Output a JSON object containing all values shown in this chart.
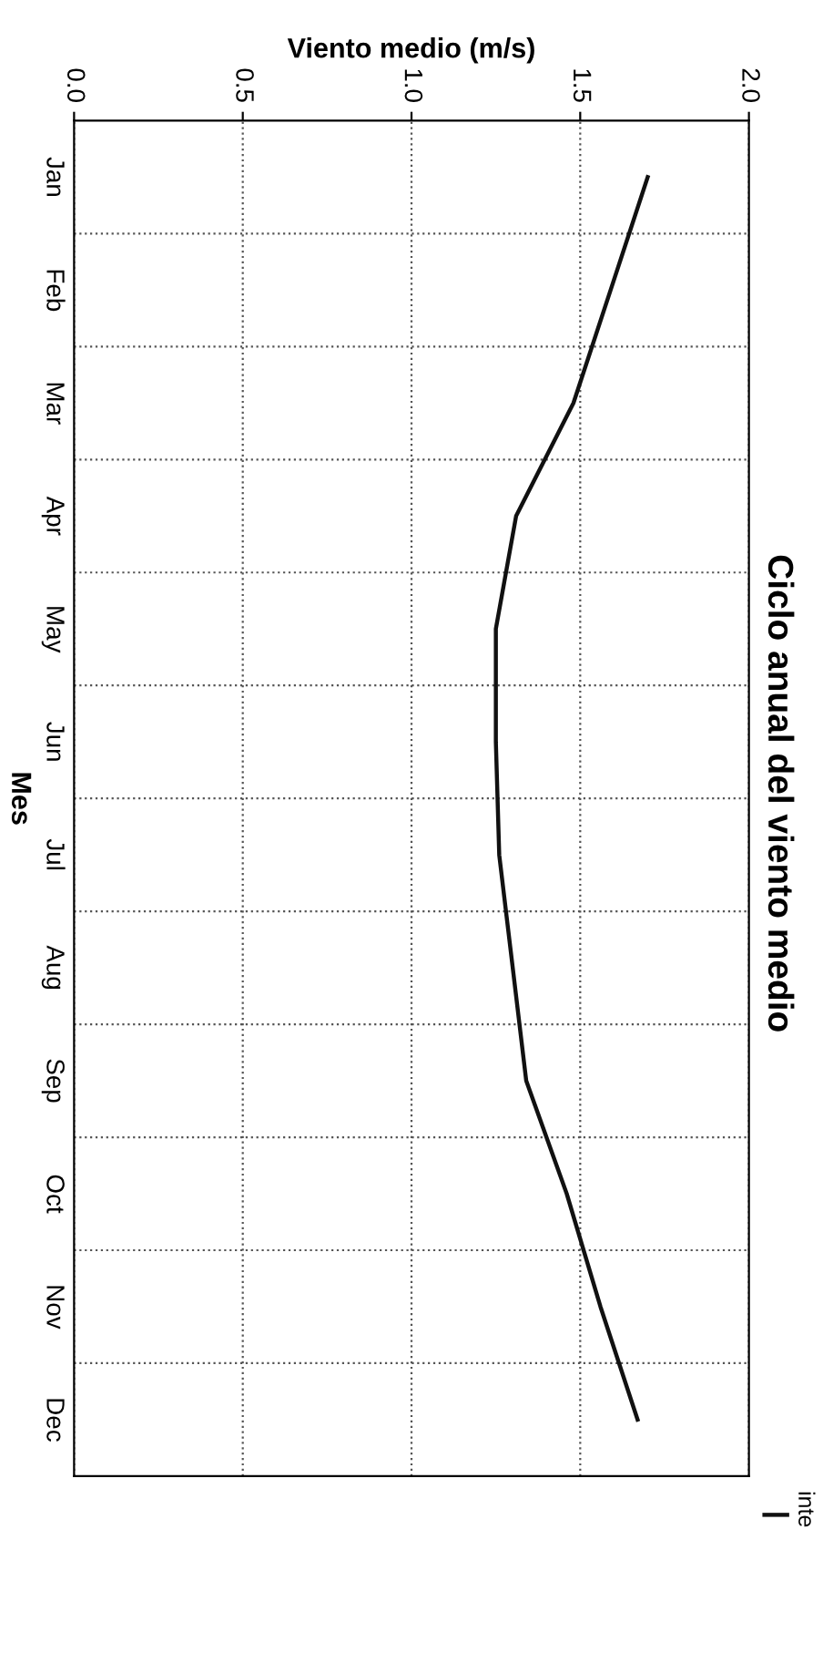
{
  "chart_data": {
    "type": "line",
    "orientation": "horizontal",
    "title": "Ciclo anual del viento medio",
    "xlabel": "Viento medio (m/s)",
    "ylabel": "Mes",
    "categories": [
      "Jan",
      "Feb",
      "Mar",
      "Apr",
      "May",
      "Jun",
      "Jul",
      "Aug",
      "Sep",
      "Oct",
      "Nov",
      "Dec"
    ],
    "series": [
      {
        "name": "inte",
        "color": "#111111",
        "values": [
          1.7,
          1.59,
          1.48,
          1.31,
          1.25,
          1.25,
          1.26,
          1.3,
          1.34,
          1.46,
          1.56,
          1.67
        ]
      }
    ],
    "xlim": [
      0,
      2
    ],
    "xticks": [
      {
        "value": 0,
        "label": "0.0"
      },
      {
        "value": 0.5,
        "label": "0.5"
      },
      {
        "value": 1,
        "label": "1.0"
      },
      {
        "value": 1.5,
        "label": "1.5"
      },
      {
        "value": 2,
        "label": "2.0"
      }
    ],
    "grid": true,
    "legend": "bottom right",
    "marker": "none",
    "line_style": "solid"
  }
}
